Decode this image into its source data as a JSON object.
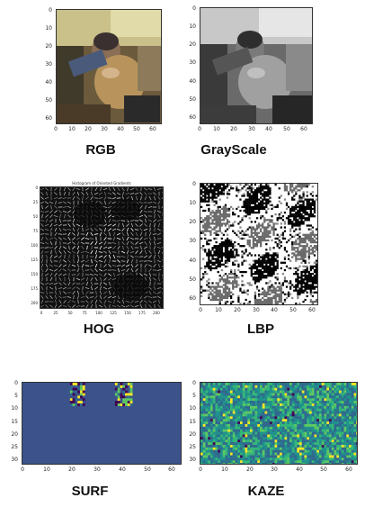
{
  "panels": {
    "rgb": {
      "caption": "RGB",
      "xticks": [
        "0",
        "10",
        "20",
        "30",
        "40",
        "50",
        "60"
      ],
      "yticks": [
        "0",
        "10",
        "20",
        "30",
        "40",
        "50",
        "60"
      ]
    },
    "gray": {
      "caption": "GrayScale",
      "xticks": [
        "0",
        "10",
        "20",
        "30",
        "40",
        "50",
        "60"
      ],
      "yticks": [
        "0",
        "10",
        "20",
        "30",
        "40",
        "50",
        "60"
      ]
    },
    "hog": {
      "caption": "HOG",
      "plot_title": "Histogram of Oriented Gradients",
      "xticks": [
        "0",
        "25",
        "50",
        "75",
        "100",
        "125",
        "150",
        "175",
        "200"
      ],
      "yticks": [
        "0",
        "25",
        "50",
        "75",
        "100",
        "125",
        "150",
        "175",
        "200"
      ]
    },
    "lbp": {
      "caption": "LBP",
      "xticks": [
        "0",
        "10",
        "20",
        "30",
        "40",
        "50",
        "60"
      ],
      "yticks": [
        "0",
        "10",
        "20",
        "30",
        "40",
        "50",
        "60"
      ]
    },
    "surf": {
      "caption": "SURF",
      "xticks": [
        "0",
        "10",
        "20",
        "30",
        "40",
        "50",
        "60"
      ],
      "yticks": [
        "0",
        "5",
        "10",
        "15",
        "20",
        "25",
        "30"
      ]
    },
    "kaze": {
      "caption": "KAZE",
      "xticks": [
        "0",
        "10",
        "20",
        "30",
        "40",
        "50",
        "60"
      ],
      "yticks": [
        "0",
        "5",
        "10",
        "15",
        "20",
        "25",
        "30"
      ]
    }
  },
  "colors": {
    "viridis_dark": "#3b528b",
    "viridis_mid": "#21918c",
    "viridis_light": "#5ec962",
    "viridis_yellow": "#fde725"
  }
}
